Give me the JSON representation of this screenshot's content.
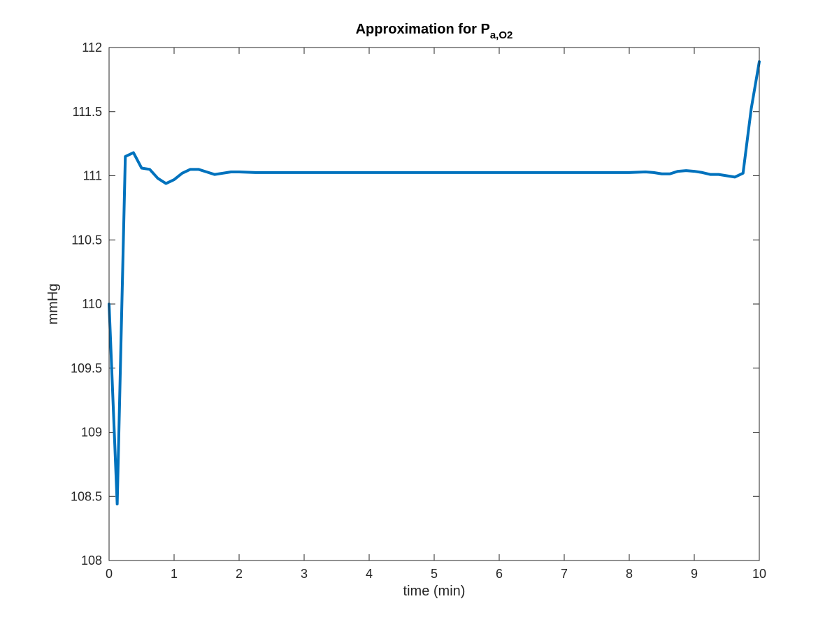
{
  "chart_data": {
    "type": "line",
    "title": {
      "main": "Approximation for P",
      "subscript": "a,O2"
    },
    "xlabel": "time (min)",
    "ylabel": "mmHg",
    "xlim": [
      0,
      10
    ],
    "ylim": [
      108,
      112
    ],
    "xticks": [
      0,
      1,
      2,
      3,
      4,
      5,
      6,
      7,
      8,
      9,
      10
    ],
    "yticks": [
      108,
      108.5,
      109,
      109.5,
      110,
      110.5,
      111,
      111.5,
      112
    ],
    "xtick_labels": [
      "0",
      "1",
      "2",
      "3",
      "4",
      "5",
      "6",
      "7",
      "8",
      "9",
      "10"
    ],
    "ytick_labels": [
      "108",
      "108.5",
      "109",
      "109.5",
      "110",
      "110.5",
      "111",
      "111.5",
      "112"
    ],
    "grid": false,
    "line_color": "#0072BD",
    "series": [
      {
        "x": [
          0,
          0.125,
          0.25,
          0.375,
          0.5,
          0.625,
          0.75,
          0.875,
          1.0,
          1.125,
          1.25,
          1.375,
          1.5,
          1.625,
          1.75,
          1.875,
          2.0,
          2.25,
          2.5,
          3,
          4,
          5,
          6,
          7,
          7.75,
          8.0,
          8.25,
          8.375,
          8.5,
          8.625,
          8.75,
          8.875,
          9.0,
          9.125,
          9.25,
          9.375,
          9.5,
          9.625,
          9.75,
          9.875,
          10.0
        ],
        "y": [
          110.0,
          108.44,
          111.15,
          111.18,
          111.06,
          111.05,
          110.98,
          110.94,
          110.97,
          111.02,
          111.05,
          111.05,
          111.03,
          111.01,
          111.02,
          111.03,
          111.03,
          111.025,
          111.025,
          111.025,
          111.025,
          111.025,
          111.025,
          111.025,
          111.025,
          111.025,
          111.03,
          111.025,
          111.015,
          111.015,
          111.035,
          111.04,
          111.035,
          111.025,
          111.01,
          111.01,
          111.0,
          110.99,
          111.02,
          111.52,
          111.89
        ]
      }
    ]
  }
}
